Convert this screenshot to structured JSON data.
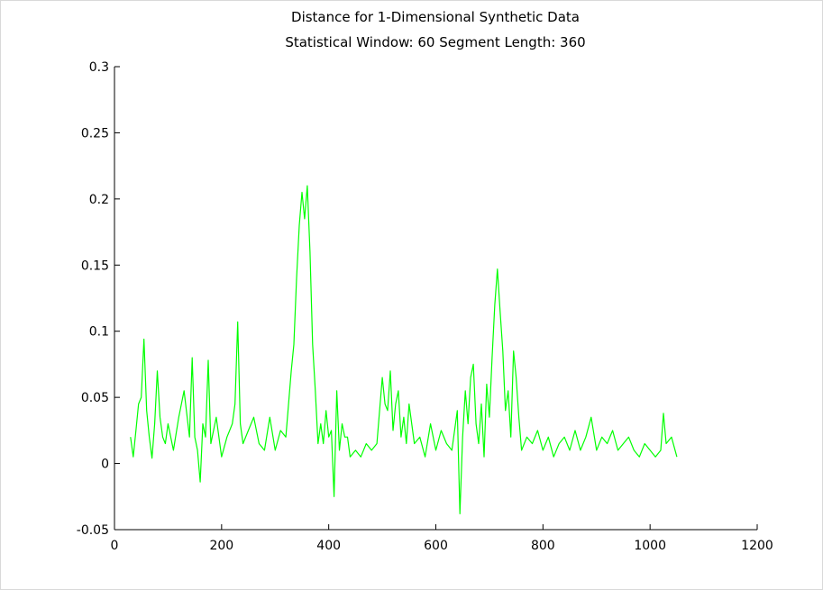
{
  "chart_data": {
    "type": "line",
    "title": "Distance for 1-Dimensional Synthetic Data",
    "subtitle": "Statistical Window: 60 Segment Length: 360",
    "xlabel": "",
    "ylabel": "",
    "xlim": [
      0,
      1200
    ],
    "ylim": [
      -0.05,
      0.3
    ],
    "x_ticks": [
      0,
      200,
      400,
      600,
      800,
      1000,
      1200
    ],
    "y_ticks": [
      -0.05,
      0,
      0.05,
      0.1,
      0.15,
      0.2,
      0.25,
      0.3
    ],
    "x_tick_labels": [
      "0",
      "200",
      "400",
      "600",
      "800",
      "1000",
      "1200"
    ],
    "y_tick_labels": [
      "-0.05",
      "0",
      "0.05",
      "0.1",
      "0.15",
      "0.2",
      "0.25",
      "0.3"
    ],
    "grid": false,
    "line_color": "#00ff00",
    "series": [
      {
        "x": [
          30,
          35,
          40,
          45,
          50,
          55,
          60,
          65,
          70,
          75,
          80,
          85,
          90,
          95,
          100,
          110,
          120,
          130,
          140,
          145,
          150,
          155,
          160,
          165,
          170,
          175,
          180,
          190,
          200,
          210,
          220,
          225,
          230,
          235,
          240,
          250,
          260,
          270,
          280,
          290,
          300,
          310,
          320,
          330,
          335,
          340,
          345,
          350,
          355,
          360,
          365,
          370,
          375,
          380,
          385,
          390,
          395,
          400,
          405,
          410,
          415,
          420,
          425,
          430,
          435,
          440,
          450,
          460,
          470,
          480,
          490,
          500,
          505,
          510,
          515,
          520,
          525,
          530,
          535,
          540,
          545,
          550,
          560,
          570,
          580,
          590,
          600,
          610,
          620,
          630,
          640,
          645,
          650,
          655,
          660,
          665,
          670,
          675,
          680,
          685,
          690,
          695,
          700,
          705,
          710,
          715,
          720,
          725,
          730,
          735,
          740,
          745,
          750,
          755,
          760,
          770,
          780,
          790,
          800,
          810,
          820,
          830,
          840,
          850,
          860,
          870,
          880,
          890,
          900,
          910,
          920,
          930,
          940,
          950,
          960,
          970,
          980,
          990,
          1000,
          1010,
          1020,
          1025,
          1030,
          1040,
          1050
        ],
        "y": [
          0.02,
          0.005,
          0.025,
          0.045,
          0.05,
          0.094,
          0.04,
          0.02,
          0.004,
          0.03,
          0.07,
          0.035,
          0.02,
          0.015,
          0.03,
          0.01,
          0.035,
          0.055,
          0.02,
          0.08,
          0.02,
          0.01,
          -0.014,
          0.03,
          0.02,
          0.078,
          0.015,
          0.035,
          0.005,
          0.02,
          0.03,
          0.045,
          0.107,
          0.03,
          0.015,
          0.025,
          0.035,
          0.015,
          0.01,
          0.035,
          0.01,
          0.025,
          0.02,
          0.07,
          0.09,
          0.14,
          0.18,
          0.205,
          0.185,
          0.21,
          0.16,
          0.09,
          0.055,
          0.015,
          0.03,
          0.015,
          0.04,
          0.02,
          0.025,
          -0.025,
          0.055,
          0.01,
          0.03,
          0.02,
          0.02,
          0.005,
          0.01,
          0.005,
          0.015,
          0.01,
          0.015,
          0.065,
          0.045,
          0.04,
          0.07,
          0.025,
          0.045,
          0.055,
          0.02,
          0.035,
          0.015,
          0.045,
          0.015,
          0.02,
          0.005,
          0.03,
          0.01,
          0.025,
          0.015,
          0.01,
          0.04,
          -0.038,
          0.02,
          0.055,
          0.03,
          0.065,
          0.075,
          0.03,
          0.015,
          0.045,
          0.005,
          0.06,
          0.035,
          0.08,
          0.12,
          0.147,
          0.115,
          0.085,
          0.04,
          0.055,
          0.02,
          0.085,
          0.065,
          0.035,
          0.01,
          0.02,
          0.015,
          0.025,
          0.01,
          0.02,
          0.005,
          0.015,
          0.02,
          0.01,
          0.025,
          0.01,
          0.02,
          0.035,
          0.01,
          0.02,
          0.015,
          0.025,
          0.01,
          0.015,
          0.02,
          0.01,
          0.005,
          0.015,
          0.01,
          0.005,
          0.01,
          0.038,
          0.015,
          0.02,
          0.005
        ]
      }
    ]
  }
}
